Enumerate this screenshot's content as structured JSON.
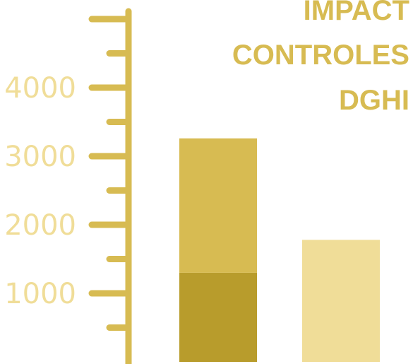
{
  "chart_data": {
    "type": "bar",
    "title_lines": [
      "IMPACT",
      "CONTROLES",
      "DGHI"
    ],
    "xlabel": "",
    "ylabel": "",
    "yticks": [
      1000,
      2000,
      3000,
      4000
    ],
    "ylim": [
      0,
      5300
    ],
    "grid": false,
    "stacked": true,
    "bars": [
      {
        "segments": [
          {
            "value": 1300,
            "color": "#b89c2c"
          },
          {
            "value": 1960,
            "color": "#d7bb52"
          }
        ]
      },
      {
        "segments": [
          {
            "value": 1780,
            "color": "#f0dd98"
          }
        ]
      }
    ]
  },
  "colors": {
    "axis": "#d7bb52",
    "title": "#d7bb52",
    "tick_label": "#f0dd98"
  }
}
